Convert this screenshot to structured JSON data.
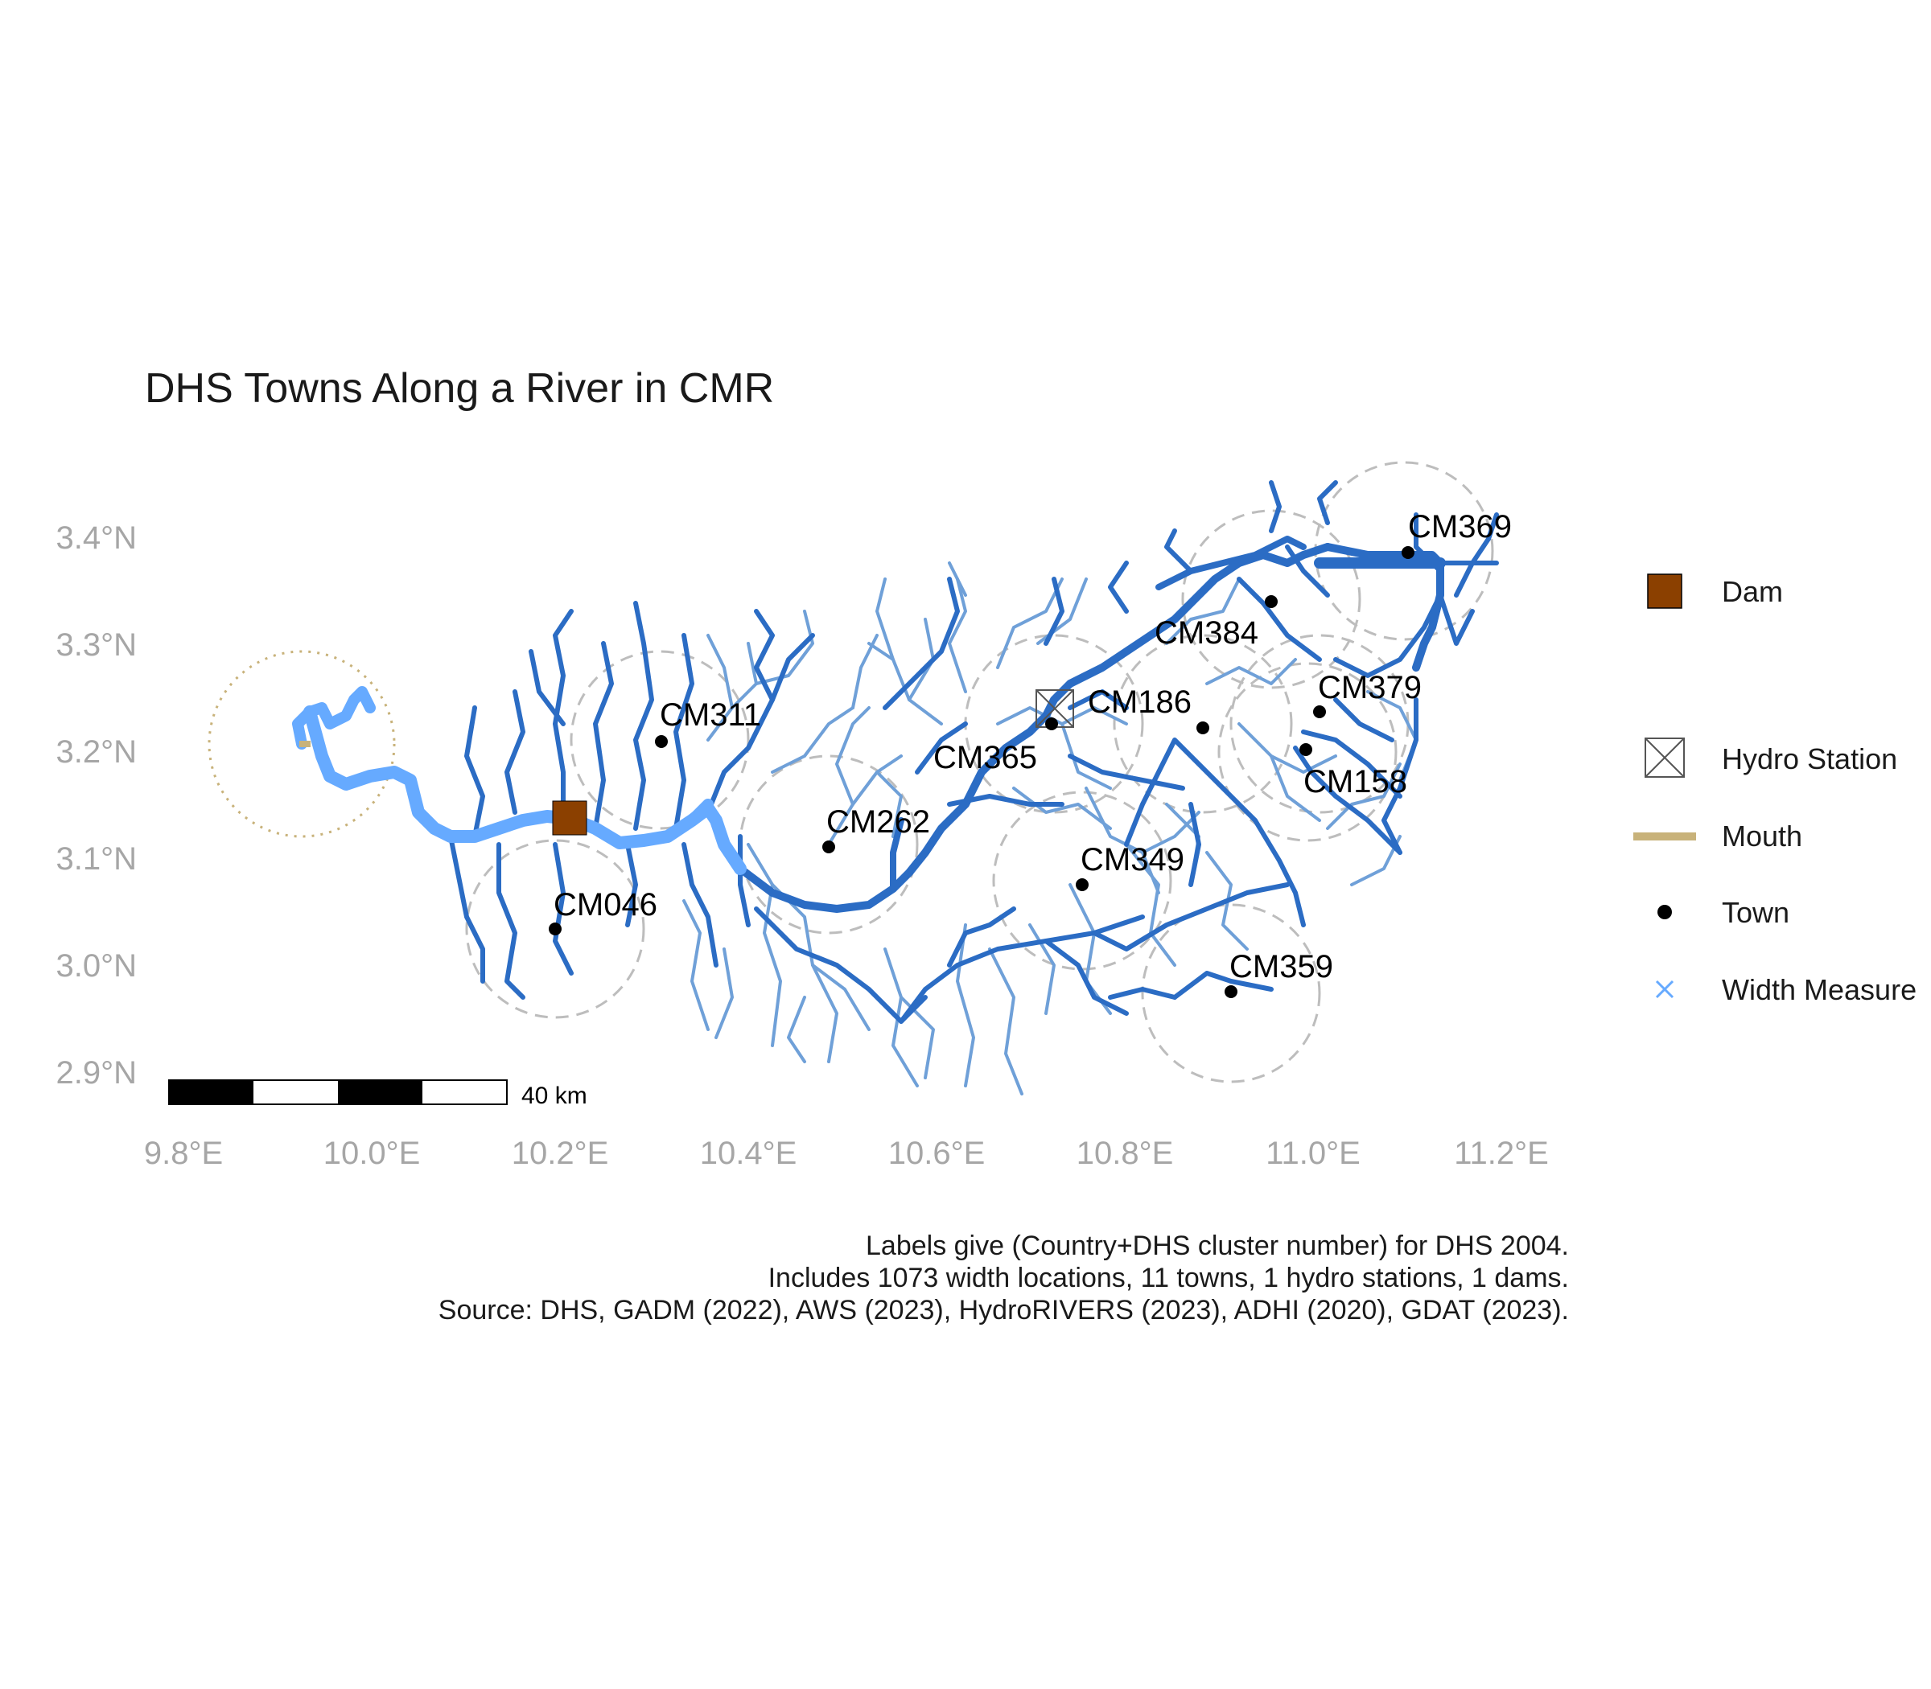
{
  "title": "DHS Towns Along a River in CMR",
  "axes": {
    "lon_ticks": [
      "9.8°E",
      "10.0°E",
      "10.2°E",
      "10.4°E",
      "10.6°E",
      "10.8°E",
      "11.0°E",
      "11.2°E"
    ],
    "lat_ticks": [
      "3.4°N",
      "3.3°N",
      "3.2°N",
      "3.1°N",
      "3.0°N",
      "2.9°N"
    ]
  },
  "towns": [
    {
      "label": "CM369",
      "lon": 11.11,
      "lat": 3.385
    },
    {
      "label": "CM384",
      "lon": 10.96,
      "lat": 3.34
    },
    {
      "label": "CM379",
      "lon": 11.01,
      "lat": 3.235
    },
    {
      "label": "CM186",
      "lon": 10.89,
      "lat": 3.22
    },
    {
      "label": "CM365",
      "lon": 10.73,
      "lat": 3.225
    },
    {
      "label": "CM158",
      "lon": 11.0,
      "lat": 3.2
    },
    {
      "label": "CM311",
      "lon": 10.31,
      "lat": 3.21
    },
    {
      "label": "CM262",
      "lon": 10.49,
      "lat": 3.11
    },
    {
      "label": "CM349",
      "lon": 10.76,
      "lat": 3.075
    },
    {
      "label": "CM046",
      "lon": 10.2,
      "lat": 3.035
    },
    {
      "label": "CM359",
      "lon": 10.92,
      "lat": 2.975
    }
  ],
  "dam": {
    "lon": 10.22,
    "lat": 3.135
  },
  "hydro_station": {
    "lon": 10.72,
    "lat": 3.24
  },
  "mouth": {
    "lon": 9.93,
    "lat": 3.205
  },
  "scale_bar": {
    "label": "40 km"
  },
  "legend": {
    "items": [
      {
        "key": "dam",
        "label": "Dam"
      },
      {
        "key": "hydro",
        "label": "Hydro Station"
      },
      {
        "key": "mouth",
        "label": "Mouth"
      },
      {
        "key": "town",
        "label": "Town"
      },
      {
        "key": "width",
        "label": "Width Measure"
      }
    ]
  },
  "caption": {
    "line1": "Labels give (Country+DHS cluster number) for DHS 2004.",
    "line2": "Includes 1073 width locations, 11 towns, 1 hydro stations, 1 dams.",
    "line3": "Source: DHS, GADM (2022), AWS (2023), HydroRIVERS (2023), ADHI (2020), GDAT (2023)."
  },
  "colors": {
    "main_river": "#2b6cc4",
    "tributary": "#6fa0d8",
    "width_measure": "#66aaff",
    "dam": "#8b4000",
    "mouth": "#c8b27a",
    "buffer": "#bdbdbd",
    "axis_text": "#a6a6a6"
  }
}
